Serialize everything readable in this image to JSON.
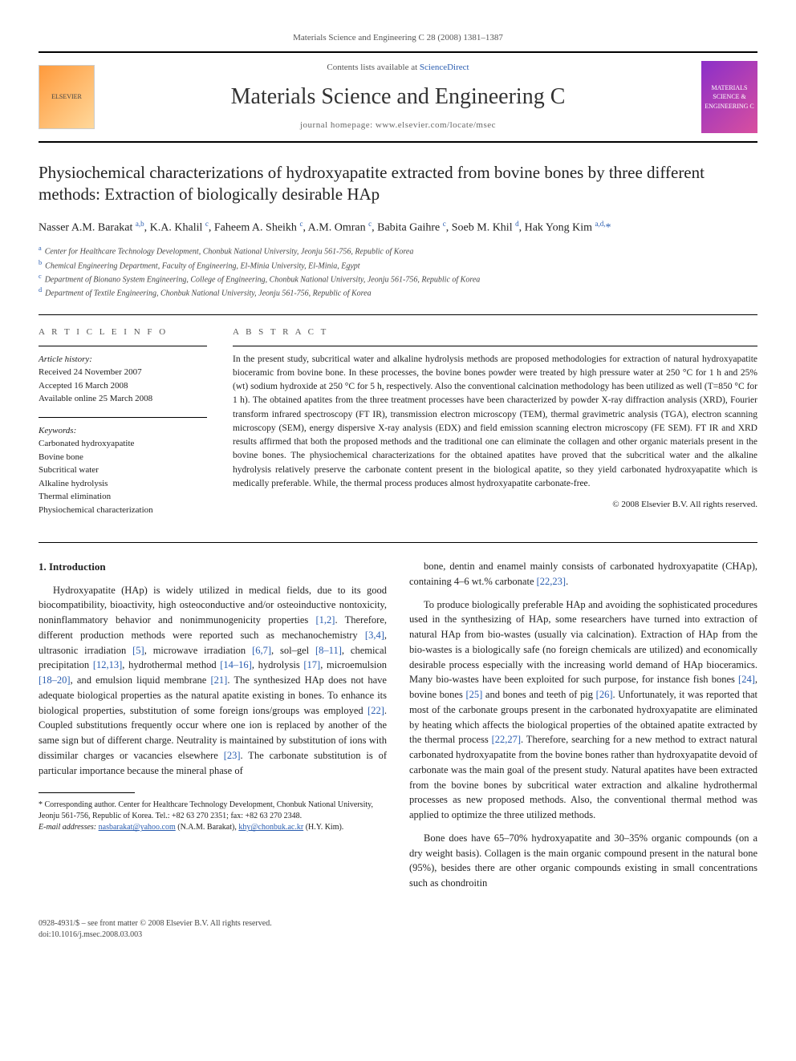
{
  "header_band": "Materials Science and Engineering C 28 (2008) 1381–1387",
  "contents_prefix": "Contents lists available at ",
  "contents_link": "ScienceDirect",
  "journal_title": "Materials Science and Engineering C",
  "homepage_prefix": "journal homepage: ",
  "homepage_url": "www.elsevier.com/locate/msec",
  "logo_left_text": "ELSEVIER",
  "logo_right_text": "MATERIALS SCIENCE & ENGINEERING C",
  "article_title": "Physiochemical characterizations of hydroxyapatite extracted from bovine bones by three different methods: Extraction of biologically desirable HAp",
  "authors_html": "Nasser A.M. Barakat <sup>a,b</sup>, K.A. Khalil <sup>c</sup>, Faheem A. Sheikh <sup>c</sup>, A.M. Omran <sup>c</sup>, Babita Gaihre <sup>c</sup>, Soeb M. Khil <sup>d</sup>, Hak Yong Kim <sup>a,d,</sup><span class='star'>*</span>",
  "affiliations": [
    {
      "sup": "a",
      "text": "Center for Healthcare Technology Development, Chonbuk National University, Jeonju 561-756, Republic of Korea"
    },
    {
      "sup": "b",
      "text": "Chemical Engineering Department, Faculty of Engineering, El-Minia University, El-Minia, Egypt"
    },
    {
      "sup": "c",
      "text": "Department of Bionano System Engineering, College of Engineering, Chonbuk National University, Jeonju 561-756, Republic of Korea"
    },
    {
      "sup": "d",
      "text": "Department of Textile Engineering, Chonbuk National University, Jeonju 561-756, Republic of Korea"
    }
  ],
  "info": {
    "head": "A R T I C L E   I N F O",
    "history_label": "Article history:",
    "received": "Received 24 November 2007",
    "accepted": "Accepted 16 March 2008",
    "online": "Available online 25 March 2008",
    "keywords_label": "Keywords:",
    "keywords": [
      "Carbonated hydroxyapatite",
      "Bovine bone",
      "Subcritical water",
      "Alkaline hydrolysis",
      "Thermal elimination",
      "Physiochemical characterization"
    ]
  },
  "abstract": {
    "head": "A B S T R A C T",
    "text": "In the present study, subcritical water and alkaline hydrolysis methods are proposed methodologies for extraction of natural hydroxyapatite bioceramic from bovine bone. In these processes, the bovine bones powder were treated by high pressure water at 250 °C for 1 h and 25% (wt) sodium hydroxide at 250 °C for 5 h, respectively. Also the conventional calcination methodology has been utilized as well (T=850 °C for 1 h). The obtained apatites from the three treatment processes have been characterized by powder X-ray diffraction analysis (XRD), Fourier transform infrared spectroscopy (FT IR), transmission electron microscopy (TEM), thermal gravimetric analysis (TGA), electron scanning microscopy (SEM), energy dispersive X-ray analysis (EDX) and field emission scanning electron microscopy (FE SEM). FT IR and XRD results affirmed that both the proposed methods and the traditional one can eliminate the collagen and other organic materials present in the bovine bones. The physiochemical characterizations for the obtained apatites have proved that the subcritical water and the alkaline hydrolysis relatively preserve the carbonate content present in the biological apatite, so they yield carbonated hydroxyapatite which is medically preferable. While, the thermal process produces almost hydroxyapatite carbonate-free.",
    "copyright": "© 2008 Elsevier B.V. All rights reserved."
  },
  "body": {
    "intro_head": "1. Introduction",
    "left_paras": [
      "Hydroxyapatite (HAp) is widely utilized in medical fields, due to its good biocompatibility, bioactivity, high osteoconductive and/or osteoinductive nontoxicity, noninflammatory behavior and nonimmunogenicity properties <span class='cite'>[1,2]</span>. Therefore, different production methods were reported such as mechanochemistry <span class='cite'>[3,4]</span>, ultrasonic irradiation <span class='cite'>[5]</span>, microwave irradiation <span class='cite'>[6,7]</span>, sol–gel <span class='cite'>[8–11]</span>, chemical precipitation <span class='cite'>[12,13]</span>, hydrothermal method <span class='cite'>[14–16]</span>, hydrolysis <span class='cite'>[17]</span>, microemulsion <span class='cite'>[18–20]</span>, and emulsion liquid membrane <span class='cite'>[21]</span>. The synthesized HAp does not have adequate biological properties as the natural apatite existing in bones. To enhance its biological properties, substitution of some foreign ions/groups was employed <span class='cite'>[22]</span>. Coupled substitutions frequently occur where one ion is replaced by another of the same sign but of different charge. Neutrality is maintained by substitution of ions with dissimilar charges or vacancies elsewhere <span class='cite'>[23]</span>. The carbonate substitution is of particular importance because the mineral phase of"
    ],
    "right_paras": [
      "bone, dentin and enamel mainly consists of carbonated hydroxyapatite (CHAp), containing 4–6 wt.% carbonate <span class='cite'>[22,23]</span>.",
      "To produce biologically preferable HAp and avoiding the sophisticated procedures used in the synthesizing of HAp, some researchers have turned into extraction of natural HAp from bio-wastes (usually via calcination). Extraction of HAp from the bio-wastes is a biologically safe (no foreign chemicals are utilized) and economically desirable process especially with the increasing world demand of HAp bioceramics. Many bio-wastes have been exploited for such purpose, for instance fish bones <span class='cite'>[24]</span>, bovine bones <span class='cite'>[25]</span> and bones and teeth of pig <span class='cite'>[26]</span>. Unfortunately, it was reported that most of the carbonate groups present in the carbonated hydroxyapatite are eliminated by heating which affects the biological properties of the obtained apatite extracted by the thermal process <span class='cite'>[22,27]</span>. Therefore, searching for a new method to extract natural carbonated hydroxyapatite from the bovine bones rather than hydroxyapatite devoid of carbonate was the main goal of the present study. Natural apatites have been extracted from the bovine bones by subcritical water extraction and alkaline hydrothermal processes as new proposed methods. Also, the conventional thermal method was applied to optimize the three utilized methods.",
      "Bone does have 65–70% hydroxyapatite and 30–35% organic compounds (on a dry weight basis). Collagen is the main organic compound present in the natural bone (95%), besides there are other organic compounds existing in small concentrations such as chondroitin"
    ]
  },
  "footnote": {
    "corr": "* Corresponding author. Center for Healthcare Technology Development, Chonbuk National University, Jeonju 561-756, Republic of Korea. Tel.: +82 63 270 2351; fax: +82 63 270 2348.",
    "email_label": "E-mail addresses:",
    "email1": "nasbarakat@yahoo.com",
    "email1_who": "(N.A.M. Barakat),",
    "email2": "khy@chonbuk.ac.kr",
    "email2_who": "(H.Y. Kim)."
  },
  "footer": {
    "left": "0928-4931/$ – see front matter © 2008 Elsevier B.V. All rights reserved.",
    "doi": "doi:10.1016/j.msec.2008.03.003"
  },
  "colors": {
    "link": "#2a5db0",
    "text": "#222",
    "muted": "#555"
  }
}
